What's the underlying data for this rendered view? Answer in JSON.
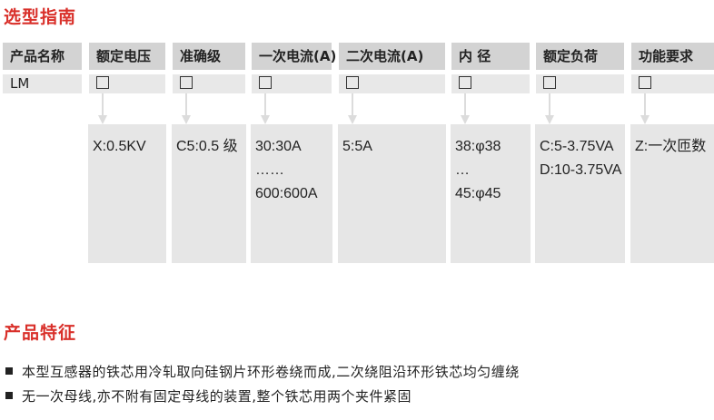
{
  "selection_title": "选型指南",
  "columns": [
    {
      "header": "产品名称",
      "code": "LM",
      "values": []
    },
    {
      "header": "额定电压",
      "code": "□",
      "values": [
        "X:0.5KV"
      ]
    },
    {
      "header": "准确级",
      "code": "□",
      "values": [
        "C5:0.5 级"
      ]
    },
    {
      "header": "一次电流(A)",
      "code": "□",
      "values": [
        "30:30A",
        "……",
        "600:600A"
      ]
    },
    {
      "header": "二次电流(A)",
      "code": "□",
      "values": [
        "5:5A"
      ]
    },
    {
      "header": "内  径",
      "code": "□",
      "values": [
        "38:φ38",
        "…",
        "45:φ45"
      ]
    },
    {
      "header": "额定负荷",
      "code": "□",
      "values": [
        "C:5-3.75VA",
        "D:10-3.75VA"
      ]
    },
    {
      "header": "功能要求",
      "code": "□",
      "values": [
        "Z:一次匝数"
      ]
    }
  ],
  "features_title": "产品特征",
  "features": [
    "本型互感器的铁芯用冷轧取向硅钢片环形卷绕而成,二次绕阻沿环形铁芯均匀缠绕",
    "无一次母线,亦不附有固定母线的装置,整个铁芯用两个夹件紧固"
  ],
  "colors": {
    "accent": "#d9302a",
    "header_bg": "#d3d3d3",
    "cell_bg": "#e6e6e6"
  }
}
